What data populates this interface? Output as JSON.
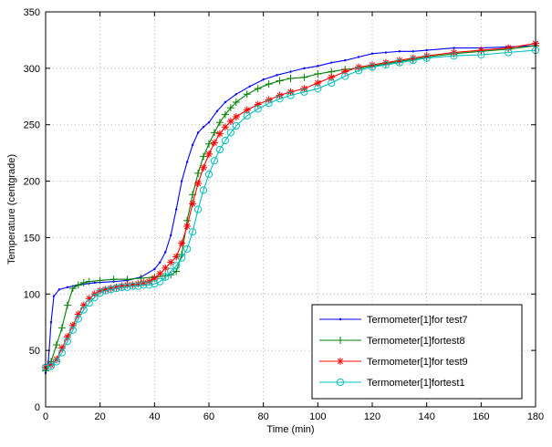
{
  "chart_data": {
    "type": "line",
    "title": "",
    "xlabel": "Time (min)",
    "ylabel": "Temperature (centgrade)",
    "xlim": [
      0,
      180
    ],
    "ylim": [
      0,
      350
    ],
    "xticks": [
      0,
      20,
      40,
      60,
      80,
      100,
      120,
      140,
      160,
      180
    ],
    "yticks": [
      0,
      50,
      100,
      150,
      200,
      250,
      300,
      350
    ],
    "grid": true,
    "legend_position": "bottom-right",
    "series": [
      {
        "name": "Termometer[1]for test7",
        "color": "#0000ff",
        "marker": "dot",
        "points": [
          [
            0,
            30
          ],
          [
            1,
            40
          ],
          [
            2,
            75
          ],
          [
            3,
            98
          ],
          [
            5,
            104
          ],
          [
            8,
            106
          ],
          [
            12,
            108
          ],
          [
            18,
            110
          ],
          [
            25,
            111
          ],
          [
            30,
            112
          ],
          [
            35,
            115
          ],
          [
            40,
            122
          ],
          [
            42,
            128
          ],
          [
            44,
            137
          ],
          [
            46,
            152
          ],
          [
            48,
            175
          ],
          [
            50,
            200
          ],
          [
            52,
            217
          ],
          [
            54,
            232
          ],
          [
            56,
            243
          ],
          [
            58,
            248
          ],
          [
            60,
            252
          ],
          [
            63,
            262
          ],
          [
            66,
            270
          ],
          [
            70,
            277
          ],
          [
            75,
            284
          ],
          [
            80,
            290
          ],
          [
            85,
            294
          ],
          [
            90,
            297
          ],
          [
            95,
            300
          ],
          [
            100,
            302
          ],
          [
            105,
            305
          ],
          [
            110,
            307
          ],
          [
            115,
            310
          ],
          [
            120,
            313
          ],
          [
            125,
            314
          ],
          [
            130,
            315
          ],
          [
            135,
            315
          ],
          [
            140,
            316
          ],
          [
            150,
            318
          ],
          [
            160,
            318
          ],
          [
            170,
            319
          ],
          [
            180,
            320
          ]
        ]
      },
      {
        "name": "Termometer[1]fortest8",
        "color": "#007f00",
        "marker": "plus",
        "points": [
          [
            0,
            32
          ],
          [
            2,
            40
          ],
          [
            4,
            55
          ],
          [
            6,
            70
          ],
          [
            8,
            90
          ],
          [
            10,
            105
          ],
          [
            12,
            108
          ],
          [
            14,
            110
          ],
          [
            16,
            111
          ],
          [
            20,
            112
          ],
          [
            25,
            113
          ],
          [
            30,
            113
          ],
          [
            35,
            114
          ],
          [
            40,
            115
          ],
          [
            44,
            116
          ],
          [
            46,
            117
          ],
          [
            48,
            120
          ],
          [
            50,
            135
          ],
          [
            52,
            165
          ],
          [
            54,
            188
          ],
          [
            56,
            207
          ],
          [
            58,
            222
          ],
          [
            60,
            233
          ],
          [
            62,
            243
          ],
          [
            64,
            252
          ],
          [
            66,
            259
          ],
          [
            68,
            265
          ],
          [
            70,
            270
          ],
          [
            74,
            277
          ],
          [
            78,
            282
          ],
          [
            82,
            286
          ],
          [
            86,
            289
          ],
          [
            90,
            291
          ],
          [
            95,
            292
          ],
          [
            100,
            295
          ],
          [
            105,
            297
          ],
          [
            110,
            299
          ],
          [
            115,
            300
          ],
          [
            120,
            302
          ],
          [
            125,
            304
          ],
          [
            130,
            306
          ],
          [
            135,
            308
          ],
          [
            140,
            310
          ],
          [
            150,
            313
          ],
          [
            160,
            315
          ],
          [
            170,
            317
          ],
          [
            180,
            320
          ]
        ]
      },
      {
        "name": "Termometer[1]for test9",
        "color": "#ff0000",
        "marker": "star",
        "points": [
          [
            0,
            35
          ],
          [
            2,
            37
          ],
          [
            4,
            42
          ],
          [
            6,
            52
          ],
          [
            8,
            62
          ],
          [
            10,
            72
          ],
          [
            12,
            82
          ],
          [
            14,
            90
          ],
          [
            16,
            96
          ],
          [
            18,
            100
          ],
          [
            20,
            103
          ],
          [
            22,
            104
          ],
          [
            24,
            105
          ],
          [
            26,
            106
          ],
          [
            28,
            107
          ],
          [
            30,
            108
          ],
          [
            32,
            108
          ],
          [
            34,
            109
          ],
          [
            36,
            110
          ],
          [
            38,
            111
          ],
          [
            40,
            114
          ],
          [
            42,
            118
          ],
          [
            44,
            123
          ],
          [
            46,
            128
          ],
          [
            48,
            133
          ],
          [
            50,
            145
          ],
          [
            52,
            160
          ],
          [
            54,
            180
          ],
          [
            56,
            198
          ],
          [
            58,
            212
          ],
          [
            60,
            224
          ],
          [
            62,
            234
          ],
          [
            64,
            242
          ],
          [
            66,
            248
          ],
          [
            68,
            253
          ],
          [
            70,
            257
          ],
          [
            74,
            263
          ],
          [
            78,
            268
          ],
          [
            82,
            272
          ],
          [
            86,
            276
          ],
          [
            90,
            279
          ],
          [
            95,
            282
          ],
          [
            100,
            287
          ],
          [
            105,
            292
          ],
          [
            110,
            297
          ],
          [
            115,
            301
          ],
          [
            120,
            303
          ],
          [
            125,
            305
          ],
          [
            130,
            307
          ],
          [
            135,
            309
          ],
          [
            140,
            311
          ],
          [
            150,
            314
          ],
          [
            160,
            316
          ],
          [
            170,
            318
          ],
          [
            180,
            322
          ]
        ]
      },
      {
        "name": "Termometer[1]fortest1",
        "color": "#00bfbf",
        "marker": "circle",
        "points": [
          [
            0,
            35
          ],
          [
            2,
            36
          ],
          [
            4,
            40
          ],
          [
            6,
            48
          ],
          [
            8,
            58
          ],
          [
            10,
            68
          ],
          [
            12,
            78
          ],
          [
            14,
            86
          ],
          [
            16,
            92
          ],
          [
            18,
            97
          ],
          [
            20,
            101
          ],
          [
            22,
            103
          ],
          [
            24,
            104
          ],
          [
            26,
            105
          ],
          [
            28,
            106
          ],
          [
            30,
            106
          ],
          [
            32,
            107
          ],
          [
            34,
            107
          ],
          [
            36,
            108
          ],
          [
            38,
            108
          ],
          [
            40,
            109
          ],
          [
            42,
            111
          ],
          [
            44,
            115
          ],
          [
            46,
            120
          ],
          [
            48,
            125
          ],
          [
            50,
            132
          ],
          [
            52,
            140
          ],
          [
            54,
            155
          ],
          [
            56,
            175
          ],
          [
            58,
            192
          ],
          [
            60,
            206
          ],
          [
            62,
            218
          ],
          [
            64,
            228
          ],
          [
            66,
            236
          ],
          [
            68,
            243
          ],
          [
            70,
            249
          ],
          [
            74,
            258
          ],
          [
            78,
            264
          ],
          [
            82,
            269
          ],
          [
            86,
            273
          ],
          [
            90,
            276
          ],
          [
            95,
            279
          ],
          [
            100,
            282
          ],
          [
            105,
            287
          ],
          [
            110,
            293
          ],
          [
            115,
            298
          ],
          [
            120,
            301
          ],
          [
            125,
            303
          ],
          [
            130,
            305
          ],
          [
            135,
            307
          ],
          [
            140,
            309
          ],
          [
            150,
            311
          ],
          [
            160,
            312
          ],
          [
            170,
            314
          ],
          [
            180,
            316
          ]
        ]
      }
    ]
  }
}
